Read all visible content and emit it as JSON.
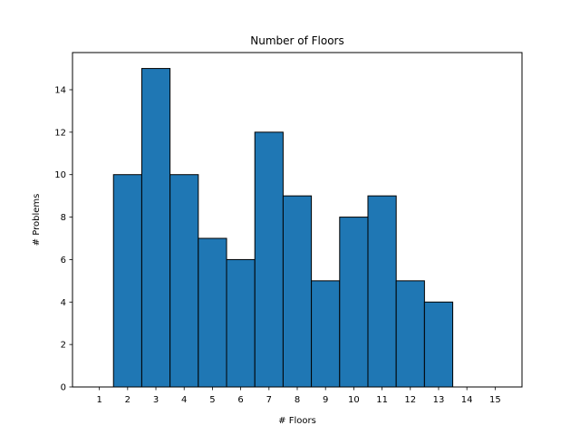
{
  "chart_data": {
    "type": "bar",
    "title": "Number of Floors",
    "xlabel": "# Floors",
    "ylabel": "# Problems",
    "categories": [
      "1",
      "2",
      "3",
      "4",
      "5",
      "6",
      "7",
      "8",
      "9",
      "10",
      "11",
      "12",
      "13",
      "14",
      "15"
    ],
    "values": [
      0,
      10,
      15,
      10,
      7,
      6,
      12,
      9,
      5,
      8,
      9,
      5,
      4,
      0,
      0
    ],
    "xlim": [
      0.05,
      15.95
    ],
    "ylim": [
      0,
      15.75
    ],
    "yticks": [
      0,
      2,
      4,
      6,
      8,
      10,
      12,
      14
    ],
    "grid": false,
    "bar_color": "#1f77b4",
    "edge_color": "#000000"
  }
}
